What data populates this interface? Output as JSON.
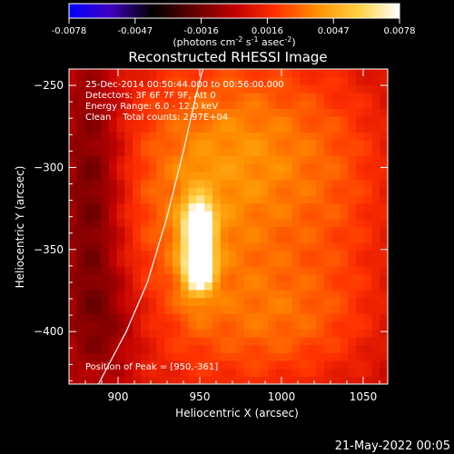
{
  "chart_data": {
    "type": "heatmap",
    "title": "Reconstructed RHESSI Image",
    "info_lines": [
      "25-Dec-2014 00:50:44.000 to 00:56:00.000",
      "Detectors: 3F 6F 7F 9F, Att 0",
      "Energy Range: 6.0 - 12.0 keV",
      "Clean    Total counts: 2.97E+04"
    ],
    "peak_label": "Position of Peak = [950,-361]",
    "peak": [
      950,
      -361
    ],
    "xlabel": "Heliocentric X (arcsec)",
    "ylabel": "Heliocentric Y (arcsec)",
    "xlim": [
      870,
      1065
    ],
    "ylim": [
      -432,
      -240
    ],
    "xticks": [
      900,
      950,
      1000,
      1050
    ],
    "yticks": [
      -250,
      -300,
      -350,
      -400
    ],
    "colorbar": {
      "min": -0.0078,
      "max": 0.0078,
      "ticks": [
        "-0.0078",
        "-0.0047",
        "-0.0016",
        "0.0016",
        "0.0047",
        "0.0078"
      ],
      "unit_label": "(photons cm",
      "unit_exp1": "-2",
      "unit_mid": " s",
      "unit_exp2": "-1",
      "unit_mid2": " asec",
      "unit_exp3": "-2",
      "unit_end": ")",
      "colormap": [
        "#0000ff",
        "#4000c0",
        "#000000",
        "#600000",
        "#c00000",
        "#ff3000",
        "#ff9000",
        "#ffd040",
        "#ffffff"
      ]
    },
    "sources": [
      {
        "x": 950,
        "y": -336,
        "sx": 5,
        "sy": 9,
        "amp": 0.0075
      },
      {
        "x": 950,
        "y": -362,
        "sx": 5,
        "sy": 7,
        "amp": 0.0078
      },
      {
        "x": 948,
        "y": -349,
        "sx": 8,
        "sy": 22,
        "amp": 0.0036
      },
      {
        "x": 955,
        "y": -340,
        "sx": 55,
        "sy": 75,
        "amp": 0.003
      },
      {
        "x": 985,
        "y": -280,
        "sx": 50,
        "sy": 40,
        "amp": 0.0018
      },
      {
        "x": 1005,
        "y": -395,
        "sx": 35,
        "sy": 25,
        "amp": 0.0014
      },
      {
        "x": 1040,
        "y": -330,
        "sx": 25,
        "sy": 60,
        "amp": 0.001
      },
      {
        "x": 885,
        "y": -320,
        "sx": 14,
        "sy": 60,
        "amp": -0.0028
      },
      {
        "x": 895,
        "y": -395,
        "sx": 18,
        "sy": 25,
        "amp": -0.0014
      }
    ],
    "limb": [
      [
        888,
        -432
      ],
      [
        905,
        -400
      ],
      [
        918,
        -370
      ],
      [
        930,
        -330
      ],
      [
        940,
        -290
      ],
      [
        948,
        -255
      ],
      [
        952,
        -240
      ]
    ]
  },
  "footer": {
    "date": "21-May-2022 00:05"
  }
}
